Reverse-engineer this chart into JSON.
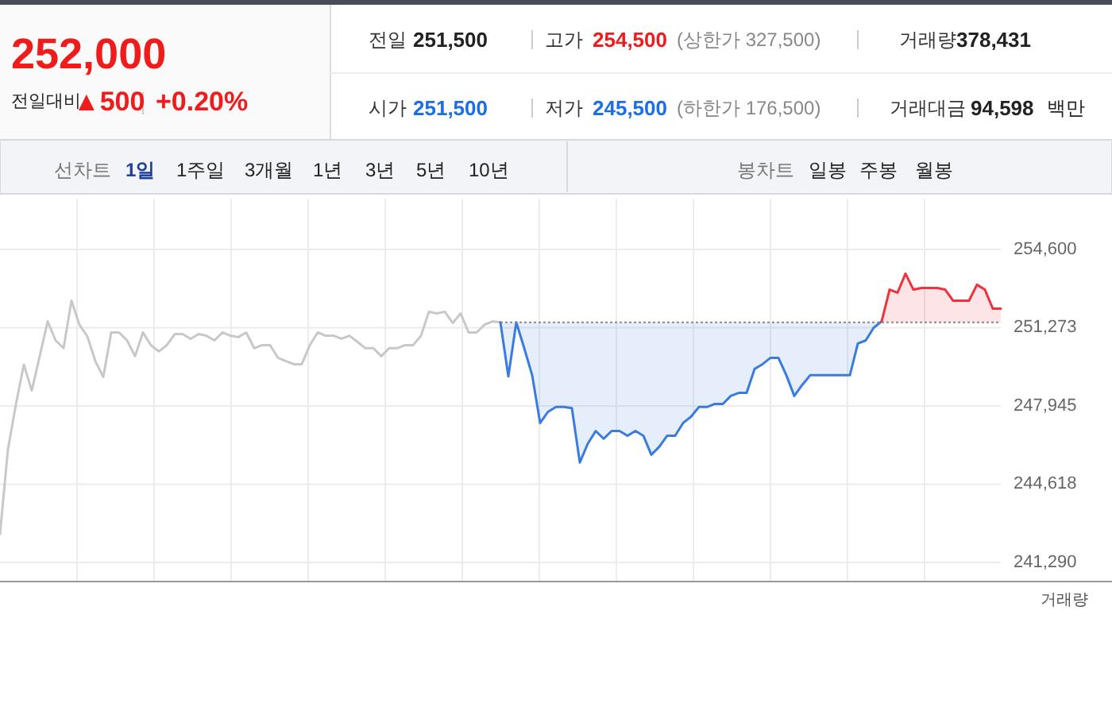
{
  "chart_data": [
    {
      "type": "other",
      "annotations": [
        "252,000",
        "전일대비",
        "▲500",
        "+0.20%",
        "전일",
        "251,500",
        "고가",
        "254,500",
        "(상한가 327,500)",
        "거래량",
        "378,431",
        "시가",
        "251,500",
        "저가",
        "245,500",
        "(하한가 176,500)",
        "거래대금",
        "94,598",
        "백만",
        "선차트",
        "1일",
        "1주일",
        "3개월",
        "1년",
        "3년",
        "5년",
        "10년",
        "봉차트",
        "일봉",
        "주봉",
        "월봉"
      ]
    },
    {
      "type": "line",
      "categories": [
        null,
        null,
        null,
        null,
        null,
        null,
        null,
        null,
        null,
        null,
        null,
        null,
        null,
        null,
        null,
        null,
        null,
        null,
        null,
        null,
        null,
        null,
        null,
        null,
        null,
        null,
        null,
        null,
        null,
        null,
        null,
        null,
        null,
        null,
        null,
        null,
        null,
        null,
        null,
        null,
        null,
        null,
        null,
        null,
        null,
        null,
        null,
        null,
        null,
        null,
        null,
        null,
        null,
        null,
        null,
        null,
        null,
        null,
        null,
        null,
        null,
        null,
        null,
        null,
        null,
        null,
        null,
        null,
        null,
        null,
        null,
        null,
        null,
        null,
        null,
        null,
        null,
        null,
        null,
        null,
        null,
        null,
        null,
        null,
        null,
        null,
        null,
        null,
        null,
        null,
        null,
        null,
        null,
        null,
        null,
        null,
        null,
        null,
        null,
        null,
        null,
        null,
        null,
        null,
        null,
        null,
        null,
        null,
        null,
        null,
        null,
        null,
        null,
        null,
        null,
        null,
        null,
        null,
        null,
        null,
        null,
        null,
        null,
        null,
        null,
        null,
        null
      ],
      "series": [
        {
          "color": "#c8c8c8",
          "values": [
            242500,
            246100,
            248000,
            249700,
            248600,
            250060,
            251540,
            250730,
            250400,
            252420,
            251400,
            250900,
            249850,
            249180,
            251070,
            251070,
            250730,
            250060,
            251070,
            250530,
            250260,
            250530,
            251000,
            251000,
            250800,
            251000,
            250930,
            250730,
            251070,
            250930,
            250870,
            251070,
            250400,
            250530,
            250530,
            249990,
            249850,
            249720,
            249720,
            250530,
            251070,
            250930,
            250930,
            250800,
            250930,
            250670,
            250400,
            250400,
            250060,
            250400,
            250400,
            250530,
            250530,
            250930,
            251950,
            251880,
            251950,
            251470,
            251880,
            251070,
            251070,
            251400,
            251540,
            251500,
            null,
            null,
            null,
            null,
            null,
            null,
            null,
            null,
            null,
            null,
            null,
            null,
            null,
            null,
            null,
            null,
            null,
            null,
            null,
            null,
            null,
            null,
            null,
            null,
            null,
            null,
            null,
            null,
            null,
            null,
            null,
            null,
            null,
            null,
            null,
            null,
            null,
            null,
            null,
            null,
            null,
            null,
            null,
            null,
            null,
            null,
            null,
            null,
            null,
            null,
            null,
            null,
            null,
            null,
            null,
            null,
            null,
            null,
            null,
            null,
            null,
            null,
            null
          ]
        },
        {
          "type": "area",
          "color": "#3a7be0",
          "values": [
            null,
            null,
            null,
            null,
            null,
            null,
            null,
            null,
            null,
            null,
            null,
            null,
            null,
            null,
            null,
            null,
            null,
            null,
            null,
            null,
            null,
            null,
            null,
            null,
            null,
            null,
            null,
            null,
            null,
            null,
            null,
            null,
            null,
            null,
            null,
            null,
            null,
            null,
            null,
            null,
            null,
            null,
            null,
            null,
            null,
            null,
            null,
            null,
            null,
            null,
            null,
            null,
            null,
            null,
            null,
            null,
            null,
            null,
            null,
            null,
            null,
            null,
            null,
            251500,
            249200,
            251500,
            250400,
            249250,
            247220,
            247700,
            247900,
            247900,
            247850,
            245540,
            246340,
            246880,
            246550,
            246880,
            246880,
            246680,
            246880,
            246680,
            245870,
            246210,
            246680,
            246680,
            247220,
            247490,
            247900,
            247900,
            248030,
            248030,
            248370,
            248500,
            248500,
            249520,
            249720,
            249990,
            249990,
            249250,
            248370,
            248840,
            249250,
            249250,
            249250,
            249250,
            249250,
            249250,
            250600,
            250730,
            251270,
            251540,
            null,
            null,
            null,
            null,
            null,
            null,
            null,
            null,
            null,
            null,
            null,
            null,
            null,
            null,
            null
          ]
        },
        {
          "type": "area",
          "color": "#f0323c",
          "values": [
            null,
            null,
            null,
            null,
            null,
            null,
            null,
            null,
            null,
            null,
            null,
            null,
            null,
            null,
            null,
            null,
            null,
            null,
            null,
            null,
            null,
            null,
            null,
            null,
            null,
            null,
            null,
            null,
            null,
            null,
            null,
            null,
            null,
            null,
            null,
            null,
            null,
            null,
            null,
            null,
            null,
            null,
            null,
            null,
            null,
            null,
            null,
            null,
            null,
            null,
            null,
            null,
            null,
            null,
            null,
            null,
            null,
            null,
            null,
            null,
            null,
            null,
            null,
            null,
            null,
            null,
            null,
            null,
            null,
            null,
            null,
            null,
            null,
            null,
            null,
            null,
            null,
            null,
            null,
            null,
            null,
            null,
            null,
            null,
            null,
            null,
            null,
            null,
            null,
            null,
            null,
            null,
            null,
            null,
            null,
            null,
            null,
            null,
            null,
            null,
            null,
            null,
            null,
            null,
            null,
            null,
            null,
            null,
            null,
            null,
            null,
            251540,
            252890,
            252760,
            253570,
            252890,
            252960,
            252960,
            252960,
            252890,
            252420,
            252420,
            252420,
            253100,
            252890,
            252080,
            252080
          ]
        }
      ],
      "ylim": [
        240480,
        256760
      ],
      "yticks": [
        {
          "value": 241290,
          "label": "241,290"
        },
        {
          "value": 244618,
          "label": "244,618"
        },
        {
          "value": 247945,
          "label": "247,945"
        },
        {
          "value": 251273,
          "label": "251,273"
        },
        {
          "value": 254600,
          "label": "254,600"
        }
      ],
      "ref_lines": [
        {
          "axis": "y",
          "value": 251500,
          "color": "#888888",
          "line_style": "dotted"
        }
      ],
      "grid": true,
      "annotations": [
        "거래량"
      ]
    }
  ]
}
